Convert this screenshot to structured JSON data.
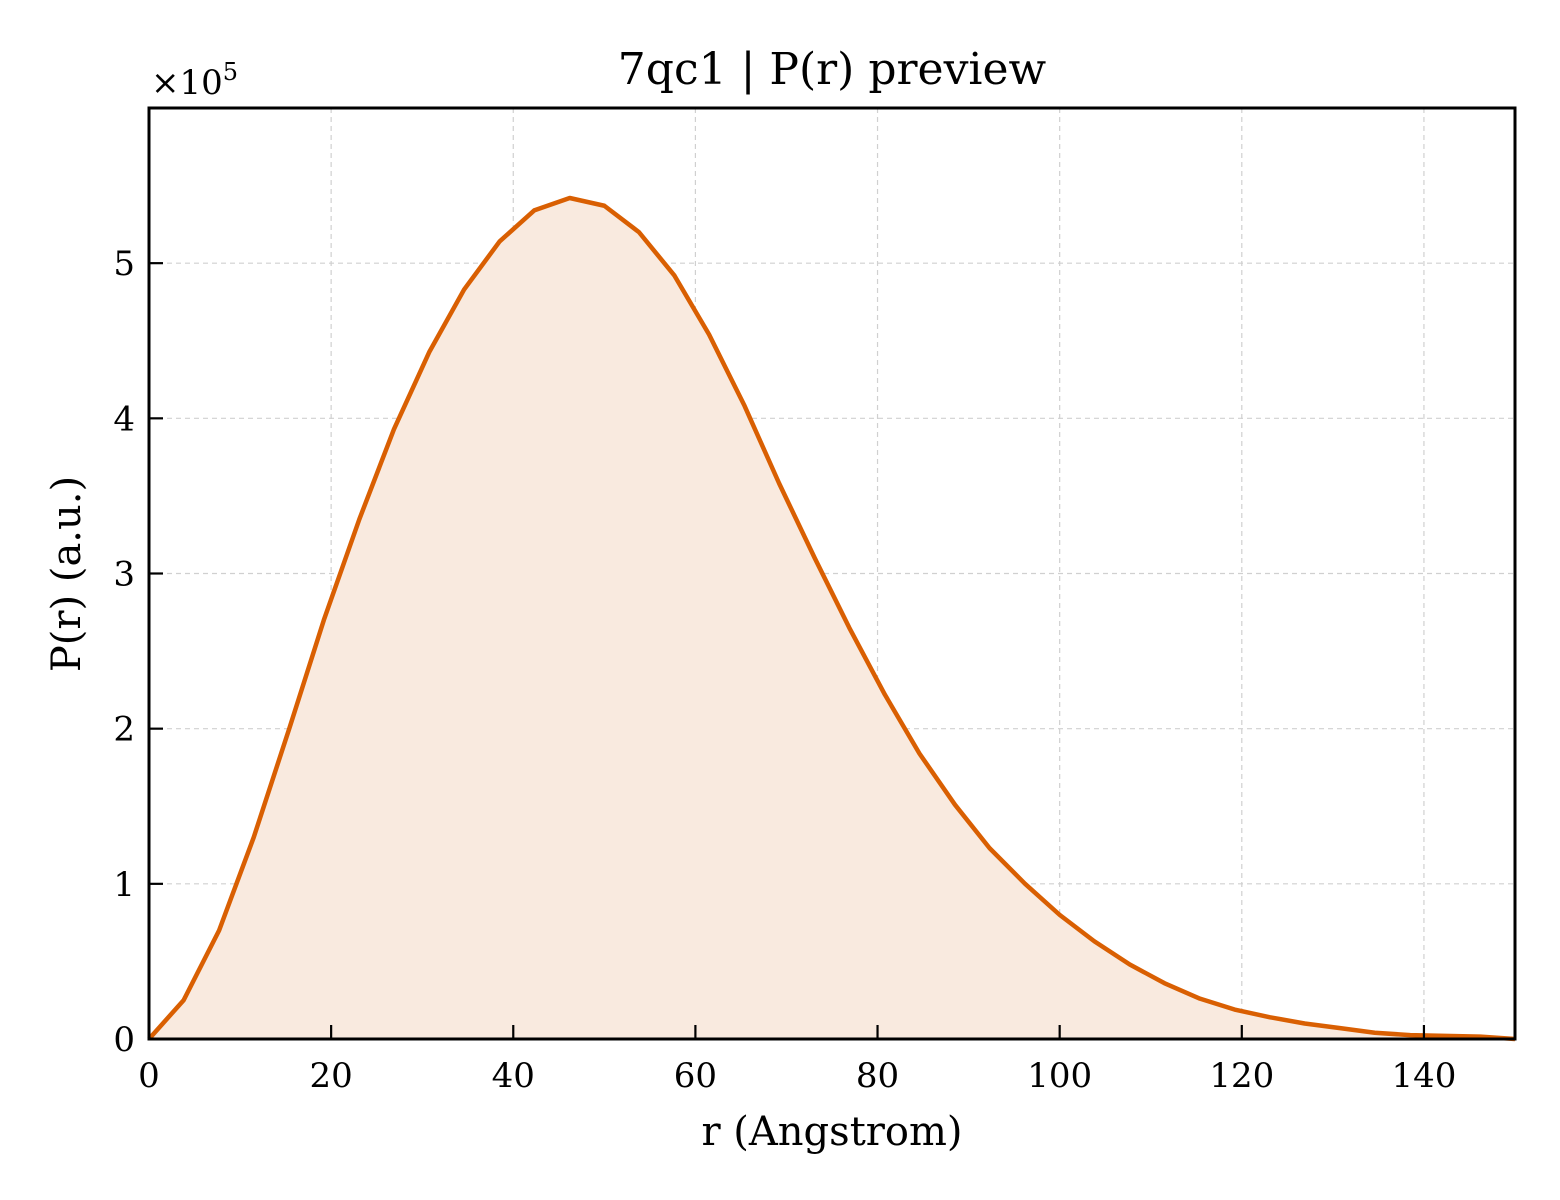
{
  "chart_data": {
    "type": "area",
    "title": "7qc1 | P(r) preview",
    "xlabel": "r (Angstrom)",
    "ylabel": "P(r) (a.u.)",
    "y_multiplier": "×10",
    "y_multiplier_exp": "5",
    "xlim": [
      0,
      150
    ],
    "ylim": [
      0,
      6.0
    ],
    "xticks": [
      0,
      20,
      40,
      60,
      80,
      100,
      120,
      140
    ],
    "xtick_labels": [
      "0",
      "20",
      "40",
      "60",
      "80",
      "100",
      "120",
      "140"
    ],
    "yticks": [
      0,
      1,
      2,
      3,
      4,
      5
    ],
    "ytick_labels": [
      "0",
      "1",
      "2",
      "3",
      "4",
      "5"
    ],
    "grid": true,
    "line_color": "#d95f02",
    "fill_color": "#f9eadf",
    "series": [
      {
        "x": [
          0,
          3.8,
          7.7,
          11.5,
          15.4,
          19.2,
          23.1,
          26.9,
          30.8,
          34.6,
          38.5,
          42.3,
          46.2,
          50.0,
          53.8,
          57.7,
          61.5,
          65.4,
          69.2,
          73.1,
          76.9,
          80.8,
          84.6,
          88.5,
          92.3,
          96.2,
          100.0,
          103.8,
          107.7,
          111.5,
          115.4,
          119.2,
          123.1,
          126.9,
          130.8,
          134.6,
          138.5,
          142.3,
          146.2,
          150.0
        ],
        "y": [
          0.0,
          0.25,
          0.7,
          1.3,
          2.0,
          2.7,
          3.35,
          3.93,
          4.43,
          4.83,
          5.14,
          5.34,
          5.42,
          5.37,
          5.2,
          4.92,
          4.54,
          4.08,
          3.58,
          3.1,
          2.65,
          2.22,
          1.84,
          1.51,
          1.23,
          1.0,
          0.8,
          0.63,
          0.48,
          0.36,
          0.26,
          0.19,
          0.14,
          0.1,
          0.07,
          0.04,
          0.025,
          0.02,
          0.015,
          0.0
        ]
      }
    ]
  }
}
